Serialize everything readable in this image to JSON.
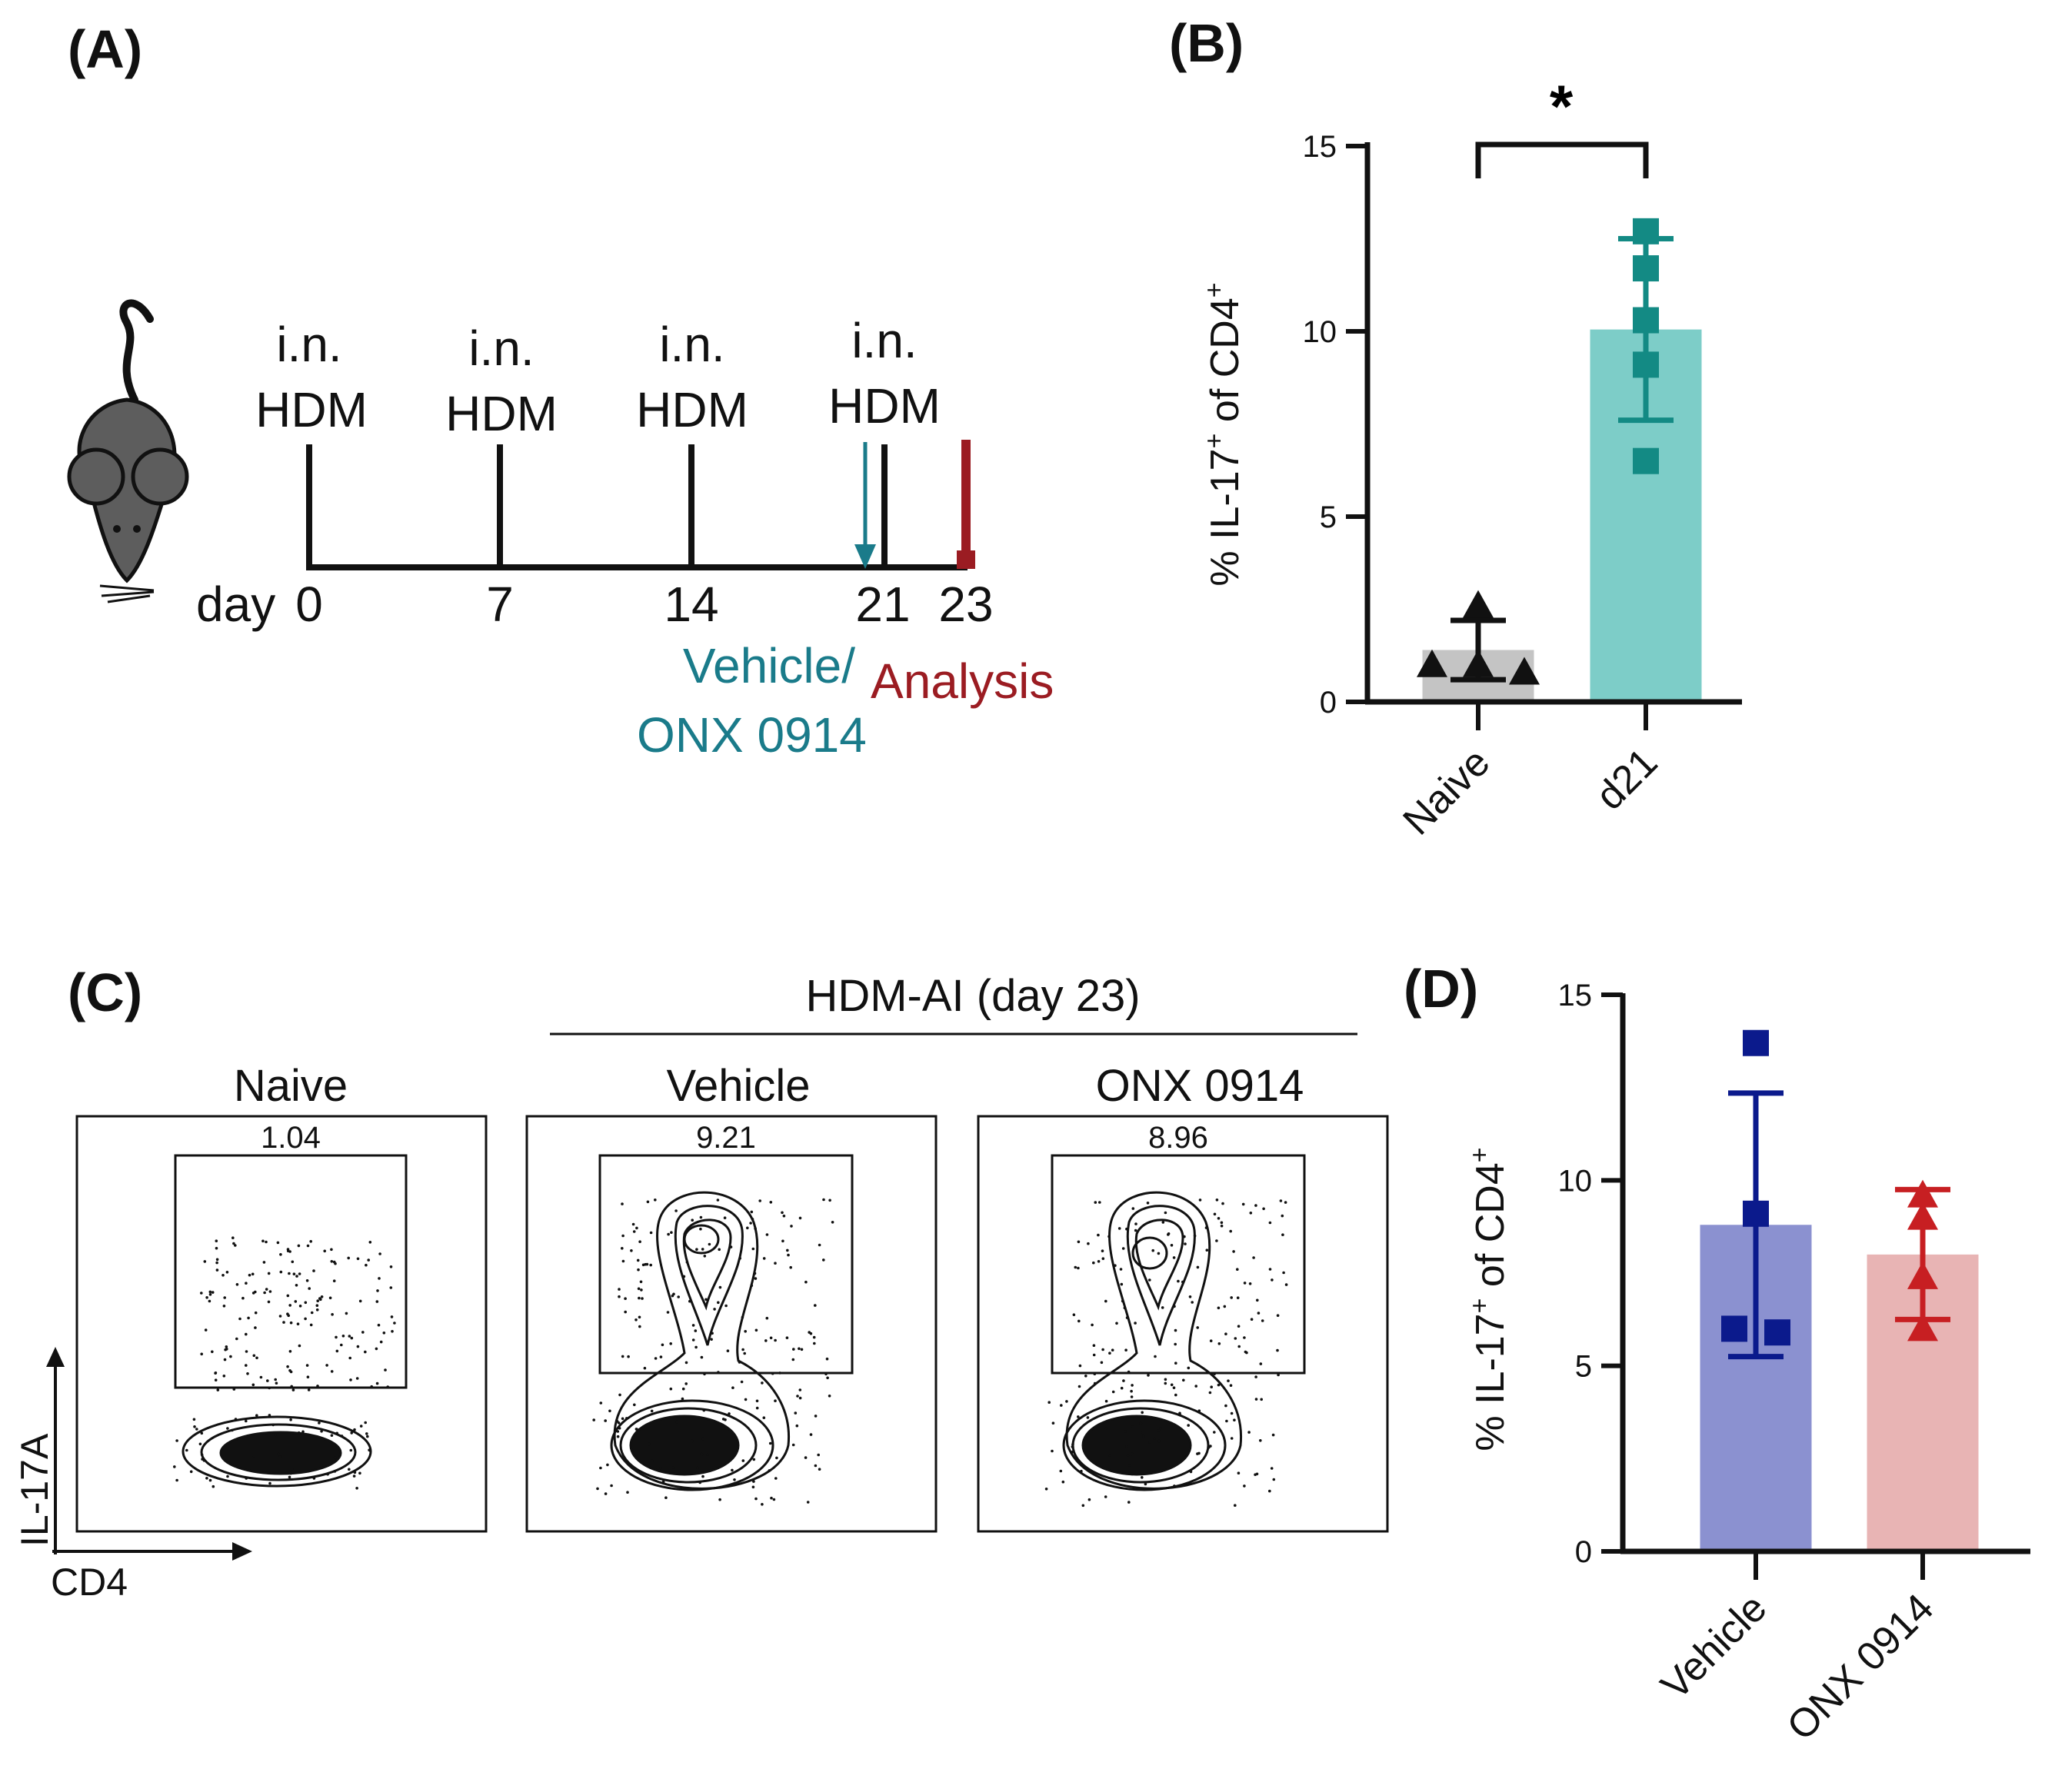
{
  "panels": {
    "a": "(A)",
    "b": "(B)",
    "c": "(C)",
    "d": "(D)"
  },
  "timeline": {
    "dose_route": "i.n.",
    "dose_agent": "HDM",
    "day_label": "day",
    "days": [
      "0",
      "7",
      "14",
      "21",
      "23"
    ],
    "treatment_line1": "Vehicle/",
    "treatment_line2": "ONX 0914",
    "analysis_label": "Analysis",
    "colors": {
      "treatment": "#1a7b8a",
      "analysis": "#9b1c22"
    }
  },
  "flow": {
    "group_title": "HDM-AI (day 23)",
    "y_axis_label": "IL-17A",
    "x_axis_label": "CD4",
    "plots": [
      {
        "title": "Naive",
        "gate_value": "1.04"
      },
      {
        "title": "Vehicle",
        "gate_value": "9.21"
      },
      {
        "title": "ONX 0914",
        "gate_value": "8.96"
      }
    ]
  },
  "chart_data": [
    {
      "type": "bar",
      "panel": "B",
      "categories": [
        "Naive",
        "d21"
      ],
      "values": [
        1.4,
        10.05
      ],
      "sd": [
        0.8,
        2.45
      ],
      "points": [
        [
          2.6,
          1.0,
          1.0,
          0.8
        ],
        [
          12.7,
          11.7,
          10.3,
          9.1,
          6.5
        ]
      ],
      "markers": [
        "triangle",
        "square"
      ],
      "bar_colors": [
        "#c4c4c4",
        "#7dcdc8"
      ],
      "point_colors": [
        "#111111",
        "#138a84"
      ],
      "ylabel": "% IL-17+ of CD4+",
      "ylabel_main": "% IL-17",
      "ylabel_mid": " of CD4",
      "ylabel_sup": "+",
      "ylim": [
        0,
        15
      ],
      "yticks": [
        "0",
        "5",
        "10",
        "15"
      ],
      "significance": "*"
    },
    {
      "type": "bar",
      "panel": "D",
      "categories": [
        "Vehicle",
        "ONX 0914"
      ],
      "values": [
        8.8,
        8.0
      ],
      "sd": [
        3.55,
        1.75
      ],
      "points": [
        [
          13.7,
          9.1,
          6.0,
          5.9
        ],
        [
          9.6,
          9.0,
          7.4,
          6.0
        ]
      ],
      "markers": [
        "square",
        "triangle"
      ],
      "bar_colors": [
        "#8b91d0",
        "#e8b4b4"
      ],
      "point_colors": [
        "#0b1a8c",
        "#c71f22"
      ],
      "ylabel": "% IL-17+ of CD4+",
      "ylabel_main": "% IL-17",
      "ylabel_mid": " of CD4",
      "ylabel_sup": "+",
      "ylim": [
        0,
        15
      ],
      "yticks": [
        "0",
        "5",
        "10",
        "15"
      ]
    }
  ]
}
